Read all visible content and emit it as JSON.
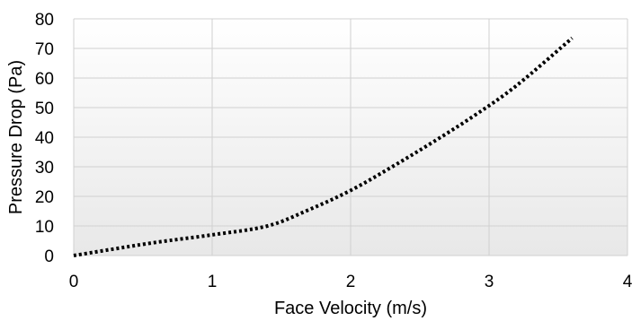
{
  "chart_data": {
    "type": "line",
    "title": "",
    "xlabel": "Face Velocity (m/s)",
    "ylabel": "Pressure Drop (Pa)",
    "xlim": [
      0,
      4
    ],
    "ylim": [
      0,
      80
    ],
    "x_ticks": [
      "0",
      "1",
      "2",
      "3",
      "4"
    ],
    "y_ticks": [
      "0",
      "10",
      "20",
      "30",
      "40",
      "50",
      "60",
      "70",
      "80"
    ],
    "grid": true,
    "legend": "none",
    "series": [
      {
        "line_style": "dotted",
        "color": "#000000",
        "x": [
          0,
          0.3,
          0.6,
          1.0,
          1.4,
          1.7,
          2.0,
          2.3,
          2.6,
          2.9,
          3.2,
          3.6
        ],
        "y": [
          0,
          2.3,
          4.5,
          7.0,
          10.0,
          15.5,
          22.0,
          30.0,
          38.5,
          47.5,
          57.5,
          73.5
        ]
      }
    ]
  }
}
